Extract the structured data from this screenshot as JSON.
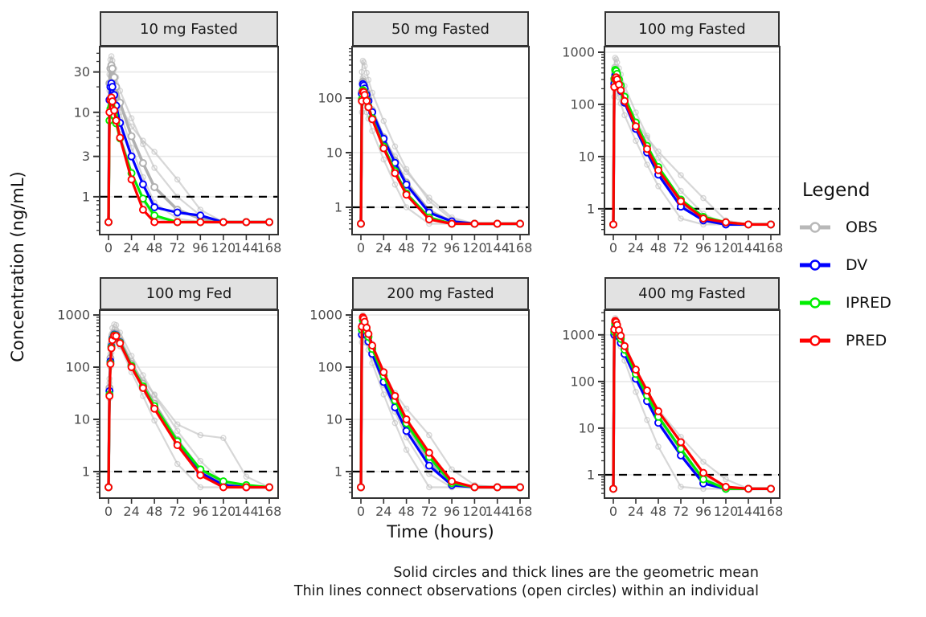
{
  "figure": {
    "y_axis_title": "Concentration (ng/mL)",
    "x_axis_title": "Time (hours)",
    "caption_line1": "Solid circles and thick lines are the geometric mean",
    "caption_line2": "Thin lines connect observations (open circles) within an individual"
  },
  "legend": {
    "title": "Legend",
    "items": [
      {
        "label": "OBS",
        "color": "#b8b8b8"
      },
      {
        "label": "DV",
        "color": "#0000ff"
      },
      {
        "label": "IPRED",
        "color": "#00ee00"
      },
      {
        "label": "PRED",
        "color": "#ff0000"
      }
    ]
  },
  "chart_data": {
    "type": "line",
    "scale": "log-y",
    "xlabel": "Time (hours)",
    "ylabel": "Concentration (ng/mL)",
    "xlim": [
      0,
      168
    ],
    "x_ticks": [
      0,
      24,
      48,
      72,
      96,
      120,
      144,
      168
    ],
    "ref_line_y": 1,
    "colors": {
      "obs": "#b0b0b0",
      "individual": "#bcbcbc",
      "dv": "#0000ff",
      "ipred": "#00ee00",
      "pred": "#ff0000"
    },
    "gridline_color": "#e8e8e8",
    "time": [
      0,
      1,
      2,
      3,
      4,
      6,
      8,
      12,
      24,
      36,
      48,
      72,
      96,
      120,
      144,
      168
    ],
    "panels": [
      {
        "title": "10 mg Fasted",
        "ylim": [
          0.356,
          60
        ],
        "yticks": [
          30,
          10,
          3,
          1
        ],
        "series": {
          "obs": [
            0.5,
            22,
            33,
            36,
            33,
            26,
            20,
            13,
            5.2,
            2.5,
            1.3,
            0.7,
            0.55,
            0.5,
            0.5,
            0.5
          ],
          "dv": [
            0.5,
            14,
            20,
            22,
            20,
            16,
            12,
            7.5,
            3.0,
            1.4,
            0.75,
            0.65,
            0.6,
            0.5,
            0.5,
            0.5
          ],
          "ipred": [
            0.5,
            8,
            11,
            12,
            11,
            9.2,
            7.4,
            4.9,
            1.9,
            0.95,
            0.6,
            0.5,
            0.5,
            0.5,
            0.5,
            0.5
          ],
          "pred": [
            0.5,
            10,
            14,
            15,
            13.5,
            10.5,
            8,
            5,
            1.6,
            0.7,
            0.5,
            0.5,
            0.5,
            0.5,
            0.5,
            0.5
          ]
        },
        "individuals": [
          [
            0.5,
            28,
            42,
            46,
            41,
            33,
            26,
            18,
            8.5,
            4.2,
            2.2,
            1.0,
            0.6,
            0.5,
            0.5,
            0.5
          ],
          [
            0.5,
            15,
            22,
            25,
            23,
            19,
            16,
            12,
            6.8,
            4.6,
            3.4,
            1.6,
            0.7,
            0.5,
            0.5,
            0.5
          ],
          [
            0.5,
            10,
            15,
            17,
            15,
            12,
            9,
            5.5,
            2.0,
            0.9,
            0.55,
            0.5,
            0.5,
            0.5,
            0.5,
            0.5
          ],
          [
            0.5,
            18,
            27,
            30,
            27,
            21,
            16,
            10,
            3.8,
            1.7,
            0.85,
            0.55,
            0.5,
            0.5,
            0.5,
            0.5
          ]
        ]
      },
      {
        "title": "50 mg Fasted",
        "ylim": [
          0.316,
          875
        ],
        "yticks": [
          100,
          10,
          1
        ],
        "series": {
          "obs": [
            0.5,
            130,
            200,
            190,
            165,
            125,
            95,
            58,
            19,
            7,
            2.8,
            0.85,
            0.55,
            0.5,
            0.5,
            0.5
          ],
          "dv": [
            0.5,
            120,
            180,
            170,
            150,
            115,
            88,
            55,
            18,
            6.5,
            2.6,
            0.8,
            0.55,
            0.5,
            0.5,
            0.5
          ],
          "ipred": [
            0.5,
            95,
            140,
            135,
            120,
            92,
            70,
            43,
            13,
            4.6,
            1.8,
            0.65,
            0.5,
            0.5,
            0.5,
            0.5
          ],
          "pred": [
            0.5,
            88,
            130,
            128,
            114,
            89,
            68,
            41,
            12,
            4.2,
            1.7,
            0.6,
            0.5,
            0.5,
            0.5,
            0.5
          ]
        },
        "individuals": [
          [
            0.5,
            300,
            480,
            450,
            385,
            290,
            215,
            125,
            38,
            13,
            5,
            1.3,
            0.6,
            0.5,
            0.5,
            0.5
          ],
          [
            0.5,
            155,
            235,
            220,
            190,
            143,
            107,
            63,
            20,
            7.5,
            3,
            0.9,
            0.55,
            0.5,
            0.5,
            0.5
          ],
          [
            0.5,
            80,
            120,
            115,
            104,
            84,
            67,
            45,
            18,
            8.5,
            4.4,
            1.5,
            0.65,
            0.5,
            0.5,
            0.5
          ],
          [
            0.5,
            55,
            85,
            82,
            72,
            55,
            42,
            25,
            7.5,
            2.6,
            1.0,
            0.5,
            0.5,
            0.5,
            0.5,
            0.5
          ]
        ]
      },
      {
        "title": "100 mg Fasted",
        "ylim": [
          0.32,
          1280
        ],
        "yticks": [
          1000,
          100,
          10,
          1
        ],
        "series": {
          "obs": [
            0.5,
            280,
            400,
            385,
            340,
            265,
            203,
            124,
            40,
            14,
            5.5,
            1.3,
            0.6,
            0.5,
            0.5,
            0.5
          ],
          "dv": [
            0.5,
            250,
            355,
            340,
            300,
            235,
            180,
            108,
            34,
            12,
            4.5,
            1.1,
            0.6,
            0.5,
            0.5,
            0.5
          ],
          "ipred": [
            0.5,
            310,
            460,
            435,
            385,
            300,
            230,
            140,
            45,
            16,
            6.3,
            1.5,
            0.7,
            0.55,
            0.5,
            0.5
          ],
          "pred": [
            0.5,
            215,
            310,
            330,
            300,
            240,
            186,
            116,
            38,
            14,
            5.5,
            1.4,
            0.65,
            0.55,
            0.5,
            0.5
          ]
        },
        "individuals": [
          [
            0.5,
            520,
            780,
            730,
            635,
            490,
            375,
            225,
            70,
            25,
            9.5,
            2.2,
            0.8,
            0.5,
            0.5,
            0.5
          ],
          [
            0.5,
            200,
            300,
            290,
            258,
            208,
            168,
            113,
            47,
            23,
            12.5,
            4.4,
            1.6,
            0.6,
            0.5,
            0.5
          ],
          [
            0.5,
            350,
            520,
            490,
            430,
            330,
            252,
            152,
            47,
            17,
            6.5,
            1.5,
            0.6,
            0.5,
            0.5,
            0.5
          ],
          [
            0.5,
            140,
            210,
            200,
            176,
            136,
            104,
            62,
            20,
            7,
            2.7,
            0.65,
            0.5,
            0.5,
            0.5,
            0.5
          ]
        ]
      },
      {
        "title": "100 mg Fed",
        "ylim": [
          0.31,
          1240
        ],
        "yticks": [
          1000,
          100,
          10,
          1
        ],
        "series": {
          "obs": [
            0.5,
            40,
            150,
            280,
            380,
            450,
            440,
            320,
            115,
            48,
            20,
            4,
            1.1,
            0.55,
            0.5,
            0.5
          ],
          "dv": [
            0.5,
            35,
            130,
            250,
            350,
            420,
            410,
            300,
            105,
            42,
            17,
            3.4,
            0.95,
            0.55,
            0.5,
            0.5
          ],
          "ipred": [
            0.5,
            30,
            120,
            240,
            340,
            410,
            402,
            295,
            106,
            43,
            18,
            3.8,
            1.1,
            0.65,
            0.55,
            0.5
          ],
          "pred": [
            0.5,
            28,
            115,
            230,
            330,
            400,
            394,
            288,
            100,
            40,
            16,
            3.2,
            0.85,
            0.5,
            0.5,
            0.5
          ]
        },
        "individuals": [
          [
            0.5,
            60,
            220,
            420,
            560,
            660,
            640,
            460,
            165,
            70,
            29,
            6,
            1.6,
            0.6,
            0.5,
            0.5
          ],
          [
            0.5,
            25,
            100,
            190,
            270,
            330,
            324,
            250,
            105,
            55,
            30,
            8,
            5,
            4.4,
            0.8,
            0.5
          ],
          [
            0.5,
            50,
            180,
            330,
            450,
            520,
            505,
            370,
            130,
            52,
            21,
            4.2,
            1.1,
            0.5,
            0.5,
            0.5
          ],
          [
            0.5,
            30,
            120,
            230,
            320,
            380,
            370,
            260,
            80,
            28,
            9.5,
            1.4,
            0.5,
            0.5,
            0.5,
            0.5
          ]
        ]
      },
      {
        "title": "200 mg Fasted",
        "ylim": [
          0.31,
          1240
        ],
        "yticks": [
          1000,
          100,
          10,
          1
        ],
        "series": {
          "obs": [
            0.5,
            550,
            840,
            790,
            685,
            520,
            392,
            230,
            68,
            23,
            8,
            1.6,
            0.55,
            0.5,
            0.5,
            0.5
          ],
          "dv": [
            0.5,
            420,
            650,
            615,
            535,
            410,
            310,
            180,
            52,
            17,
            6,
            1.3,
            0.55,
            0.5,
            0.5,
            0.5
          ],
          "ipred": [
            0.5,
            520,
            790,
            750,
            655,
            500,
            380,
            224,
            68,
            23,
            8.4,
            1.9,
            0.6,
            0.5,
            0.5,
            0.5
          ],
          "pred": [
            0.5,
            600,
            900,
            850,
            740,
            570,
            432,
            260,
            80,
            28,
            10,
            2.3,
            0.65,
            0.5,
            0.5,
            0.5
          ]
        },
        "individuals": [
          [
            0.5,
            450,
            700,
            300,
            500,
            380,
            282,
            160,
            45,
            14,
            4.5,
            0.9,
            0.5,
            0.5,
            0.5,
            0.5
          ],
          [
            0.5,
            380,
            580,
            550,
            478,
            368,
            290,
            185,
            70,
            32,
            16,
            5,
            1.1,
            0.55,
            0.5,
            0.5
          ],
          [
            0.5,
            650,
            1000,
            945,
            820,
            620,
            470,
            280,
            85,
            29,
            10,
            2,
            0.6,
            0.5,
            0.5,
            0.5
          ],
          [
            0.5,
            300,
            480,
            450,
            390,
            290,
            216,
            120,
            30,
            8.5,
            2.6,
            0.5,
            0.5,
            0.5,
            0.5,
            0.5
          ]
        ]
      },
      {
        "title": "400 mg Fasted",
        "ylim": [
          0.316,
          3400
        ],
        "yticks": [
          1000,
          100,
          10,
          1
        ],
        "series": {
          "obs": [
            0.5,
            1200,
            1850,
            1740,
            1500,
            1130,
            850,
            500,
            150,
            52,
            18,
            3.5,
            0.75,
            0.5,
            0.5,
            0.5
          ],
          "dv": [
            0.5,
            1000,
            1500,
            1400,
            1200,
            905,
            670,
            390,
            115,
            38,
            13,
            2.6,
            0.65,
            0.5,
            0.5,
            0.5
          ],
          "ipred": [
            0.5,
            1150,
            1750,
            1650,
            1430,
            1090,
            820,
            480,
            145,
            50,
            17.5,
            3.6,
            0.8,
            0.5,
            0.5,
            0.5
          ],
          "pred": [
            0.5,
            1300,
            2000,
            1890,
            1640,
            1265,
            955,
            575,
            180,
            64,
            23,
            5,
            1.1,
            0.55,
            0.5,
            0.5
          ]
        },
        "individuals": [
          [
            0.5,
            900,
            1400,
            1300,
            1100,
            800,
            560,
            280,
            60,
            15,
            4,
            0.55,
            0.5,
            0.5,
            0.5,
            0.5
          ],
          [
            0.5,
            1500,
            2300,
            2150,
            1850,
            1400,
            1050,
            620,
            190,
            66,
            24,
            4.8,
            1.0,
            0.5,
            0.5,
            0.5
          ],
          [
            0.5,
            1000,
            1550,
            1450,
            1260,
            970,
            740,
            450,
            150,
            60,
            25,
            6.5,
            1.9,
            0.8,
            0.5,
            0.5
          ],
          [
            0.5,
            1100,
            1700,
            1600,
            1380,
            1050,
            780,
            460,
            140,
            48,
            16,
            3,
            0.65,
            0.5,
            0.5,
            0.5
          ]
        ]
      }
    ]
  }
}
